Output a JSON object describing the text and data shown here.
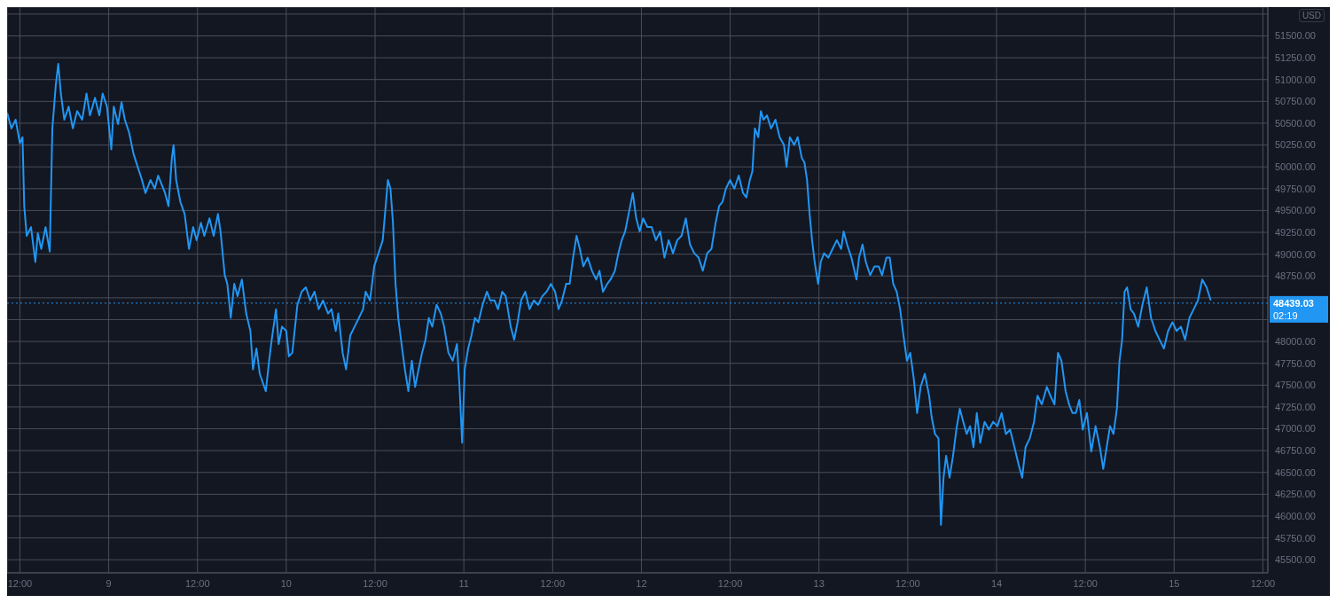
{
  "chart_data": {
    "type": "line",
    "x": [
      "--12-08T10:16",
      "--12-08T10:51",
      "--12-08T11:25",
      "--12-08T12:00",
      "--12-08T12:21",
      "--12-08T12:35",
      "--12-08T12:55",
      "--12-08T13:30",
      "--12-08T14:05",
      "--12-08T14:25",
      "--12-08T14:53",
      "--12-08T15:28",
      "--12-08T16:02",
      "--12-08T16:23",
      "--12-08T16:51",
      "--12-08T17:11",
      "--12-08T17:32",
      "--12-08T18:00",
      "--12-08T18:35",
      "--12-08T19:09",
      "--12-08T19:44",
      "--12-08T20:25",
      "--12-08T21:00",
      "--12-08T21:28",
      "--12-08T22:09",
      "--12-08T22:44",
      "--12-08T23:11",
      "--12-08T23:46",
      "--12-09T00:21",
      "--12-09T00:41",
      "--12-09T01:16",
      "--12-09T01:44",
      "--12-09T02:11",
      "--12-09T02:46",
      "--12-09T03:21",
      "--12-09T03:55",
      "--12-09T04:30",
      "--12-09T04:58",
      "--12-09T05:39",
      "--12-09T06:14",
      "--12-09T06:41",
      "--12-09T07:09",
      "--12-09T07:37",
      "--12-09T08:05",
      "--12-09T08:32",
      "--12-09T08:46",
      "--12-09T09:07",
      "--12-09T09:41",
      "--12-09T10:16",
      "--12-09T10:51",
      "--12-09T11:25",
      "--12-09T11:53",
      "--12-09T12:28",
      "--12-09T12:55",
      "--12-09T13:37",
      "--12-09T14:11",
      "--12-09T14:46",
      "--12-09T15:07",
      "--12-09T15:41",
      "--12-09T16:02",
      "--12-09T16:30",
      "--12-09T16:58",
      "--12-09T17:25",
      "--12-09T18:00",
      "--12-09T18:35",
      "--12-09T19:09",
      "--12-09T19:30",
      "--12-09T19:58",
      "--12-09T20:25",
      "--12-09T21:14",
      "--12-09T21:41",
      "--12-09T22:02",
      "--12-09T22:37",
      "--12-09T22:58",
      "--12-09T23:25",
      "--12-10T00:00",
      "--12-10T00:21",
      "--12-10T00:49",
      "--12-10T01:30",
      "--12-10T02:05",
      "--12-10T02:39",
      "--12-10T03:14",
      "--12-10T03:49",
      "--12-10T04:23",
      "--12-10T04:58",
      "--12-10T05:39",
      "--12-10T06:07",
      "--12-10T06:41",
      "--12-10T07:02",
      "--12-10T07:37",
      "--12-10T08:05",
      "--12-10T08:39",
      "--12-10T09:14",
      "--12-10T09:49",
      "--12-10T10:23",
      "--12-10T10:44",
      "--12-10T11:19",
      "--12-10T11:53",
      "--12-10T12:28",
      "--12-10T13:02",
      "--12-10T13:23",
      "--12-10T13:44",
      "--12-10T14:05",
      "--12-10T14:25",
      "--12-10T14:46",
      "--12-10T15:08",
      "--12-10T15:35",
      "--12-10T16:02",
      "--12-10T16:30",
      "--12-10T16:58",
      "--12-10T17:25",
      "--12-10T17:53",
      "--12-10T18:21",
      "--12-10T18:49",
      "--12-10T19:16",
      "--12-10T19:44",
      "--12-10T20:19",
      "--12-10T20:53",
      "--12-10T21:20",
      "--12-10T21:55",
      "--12-10T22:30",
      "--12-10T23:04",
      "--12-10T23:25",
      "--12-10T23:46",
      "--12-11T00:07",
      "--12-11T00:35",
      "--12-11T01:02",
      "--12-11T01:30",
      "--12-11T01:58",
      "--12-11T02:32",
      "--12-11T03:07",
      "--12-11T03:34",
      "--12-11T04:09",
      "--12-11T04:37",
      "--12-11T05:11",
      "--12-11T05:39",
      "--12-11T06:20",
      "--12-11T06:48",
      "--12-11T07:16",
      "--12-11T07:44",
      "--12-11T08:18",
      "--12-11T08:53",
      "--12-11T09:28",
      "--12-11T10:02",
      "--12-11T10:37",
      "--12-11T11:11",
      "--12-11T11:46",
      "--12-11T12:20",
      "--12-11T12:48",
      "--12-11T13:16",
      "--12-11T13:50",
      "--12-11T14:18",
      "--12-11T14:46",
      "--12-11T15:14",
      "--12-11T15:41",
      "--12-11T16:09",
      "--12-11T16:44",
      "--12-11T17:19",
      "--12-11T17:53",
      "--12-11T18:20",
      "--12-11T18:48",
      "--12-11T19:23",
      "--12-11T19:50",
      "--12-11T20:25",
      "--12-11T20:53",
      "--12-11T21:20",
      "--12-11T21:48",
      "--12-11T22:16",
      "--12-11T22:50",
      "--12-11T23:18",
      "--12-11T23:46",
      "--12-12T00:14",
      "--12-12T00:49",
      "--12-12T01:23",
      "--12-12T01:58",
      "--12-12T02:32",
      "--12-12T03:07",
      "--12-12T03:41",
      "--12-12T04:16",
      "--12-12T04:50",
      "--12-12T05:25",
      "--12-12T06:00",
      "--12-12T06:34",
      "--12-12T07:09",
      "--12-12T07:44",
      "--12-12T08:18",
      "--12-12T08:53",
      "--12-12T09:28",
      "--12-12T10:02",
      "--12-12T10:30",
      "--12-12T10:58",
      "--12-12T11:25",
      "--12-12T11:59",
      "--12-12T12:34",
      "--12-12T13:09",
      "--12-12T13:44",
      "--12-12T14:11",
      "--12-12T14:39",
      "--12-12T15:00",
      "--12-12T15:20",
      "--12-12T15:48",
      "--12-12T16:09",
      "--12-12T16:30",
      "--12-12T16:58",
      "--12-12T17:32",
      "--12-12T18:07",
      "--12-12T18:41",
      "--12-12T19:16",
      "--12-12T19:37",
      "--12-12T20:04",
      "--12-12T20:39",
      "--12-12T21:07",
      "--12-12T21:41",
      "--12-12T22:02",
      "--12-12T22:23",
      "--12-12T22:44",
      "--12-12T23:04",
      "--12-12T23:25",
      "--12-12T23:53",
      "--12-13T00:14",
      "--12-13T00:41",
      "--12-13T01:16",
      "--12-13T01:50",
      "--12-13T02:25",
      "--12-13T03:00",
      "--12-13T03:20",
      "--12-13T03:48",
      "--12-13T04:23",
      "--12-13T05:04",
      "--12-13T05:25",
      "--12-13T05:53",
      "--12-13T06:20",
      "--12-13T06:55",
      "--12-13T07:30",
      "--12-13T08:04",
      "--12-13T08:32",
      "--12-13T09:07",
      "--12-13T09:34",
      "--12-13T10:02",
      "--12-13T10:30",
      "--12-13T10:58",
      "--12-13T11:25",
      "--12-13T11:53",
      "--12-13T12:20",
      "--12-13T12:48",
      "--12-13T13:16",
      "--12-13T13:44",
      "--12-13T14:18",
      "--12-13T14:53",
      "--12-13T15:14",
      "--12-13T15:41",
      "--12-13T16:09",
      "--12-13T16:29",
      "--12-13T16:50",
      "--12-13T17:11",
      "--12-13T17:39",
      "--12-13T18:07",
      "--12-13T18:34",
      "--12-13T19:02",
      "--12-13T19:30",
      "--12-13T19:58",
      "--12-13T20:25",
      "--12-13T20:53",
      "--12-13T21:20",
      "--12-13T21:48",
      "--12-13T22:23",
      "--12-13T22:58",
      "--12-13T23:32",
      "--12-14T00:07",
      "--12-14T00:41",
      "--12-14T01:16",
      "--12-14T01:50",
      "--12-14T02:25",
      "--12-14T02:59",
      "--12-14T03:28",
      "--12-14T03:55",
      "--12-14T04:29",
      "--12-14T05:04",
      "--12-14T05:32",
      "--12-14T06:07",
      "--12-14T06:48",
      "--12-14T07:16",
      "--12-14T07:50",
      "--12-14T08:18",
      "--12-14T08:46",
      "--12-14T09:20",
      "--12-14T09:48",
      "--12-14T10:16",
      "--12-14T10:43",
      "--12-14T11:11",
      "--12-14T11:39",
      "--12-14T12:13",
      "--12-14T12:48",
      "--12-14T13:23",
      "--12-14T13:58",
      "--12-14T14:25",
      "--12-14T14:53",
      "--12-14T15:20",
      "--12-14T15:48",
      "--12-14T16:16",
      "--12-14T16:37",
      "--12-14T16:58",
      "--12-14T17:18",
      "--12-14T17:39",
      "--12-14T18:07",
      "--12-14T18:34",
      "--12-14T19:09",
      "--12-14T19:43",
      "--12-14T20:18",
      "--12-14T20:53",
      "--12-14T21:28",
      "--12-14T22:02",
      "--12-14T22:37",
      "--12-14T23:11",
      "--12-14T23:46",
      "--12-15T00:20",
      "--12-15T00:55",
      "--12-15T01:29",
      "--12-15T02:04",
      "--12-15T02:39",
      "--12-15T03:13",
      "--12-15T03:48",
      "--12-15T04:23",
      "--12-15T04:57"
    ],
    "series": [
      {
        "color": "#2196f3",
        "values": [
          50620,
          50440,
          50540,
          50270,
          50340,
          49550,
          49210,
          49310,
          48910,
          49240,
          49060,
          49310,
          49030,
          50440,
          50940,
          51180,
          50840,
          50540,
          50690,
          50440,
          50640,
          50540,
          50840,
          50590,
          50790,
          50590,
          50840,
          50690,
          50200,
          50690,
          50490,
          50740,
          50540,
          50390,
          50150,
          50000,
          49850,
          49700,
          49850,
          49750,
          49900,
          49800,
          49700,
          49550,
          50100,
          50250,
          49850,
          49600,
          49460,
          49060,
          49310,
          49160,
          49360,
          49210,
          49410,
          49210,
          49460,
          49260,
          48760,
          48660,
          48270,
          48660,
          48520,
          48710,
          48320,
          48120,
          47680,
          47920,
          47630,
          47430,
          47780,
          48020,
          48370,
          47970,
          48170,
          48120,
          47830,
          47870,
          48420,
          48570,
          48620,
          48470,
          48570,
          48370,
          48470,
          48320,
          48370,
          48120,
          48320,
          47870,
          47680,
          48070,
          48170,
          48270,
          48370,
          48570,
          48470,
          48860,
          49010,
          49160,
          49500,
          49850,
          49750,
          49360,
          48660,
          48270,
          47970,
          47680,
          47430,
          47780,
          47480,
          47680,
          47870,
          48020,
          48270,
          48170,
          48420,
          48320,
          48170,
          47870,
          47780,
          47970,
          47480,
          46840,
          47680,
          47920,
          48070,
          48270,
          48220,
          48420,
          48570,
          48470,
          48470,
          48370,
          48570,
          48520,
          48170,
          48020,
          48220,
          48470,
          48570,
          48370,
          48470,
          48420,
          48520,
          48570,
          48660,
          48570,
          48370,
          48470,
          48660,
          48660,
          48960,
          49210,
          49060,
          48860,
          48960,
          48810,
          48710,
          48810,
          48570,
          48660,
          48710,
          48810,
          49010,
          49160,
          49260,
          49460,
          49700,
          49410,
          49260,
          49410,
          49310,
          49310,
          49160,
          49260,
          48960,
          49160,
          49010,
          49160,
          49210,
          49410,
          49110,
          49010,
          48960,
          48810,
          49010,
          49060,
          49360,
          49550,
          49600,
          49750,
          49850,
          49750,
          49900,
          49700,
          49650,
          49850,
          49950,
          50440,
          50340,
          50640,
          50540,
          50590,
          50440,
          50540,
          50340,
          50250,
          50000,
          50340,
          50250,
          50340,
          50100,
          50050,
          49850,
          49460,
          49160,
          48910,
          48660,
          48910,
          49010,
          48960,
          49060,
          49160,
          49060,
          49260,
          49110,
          48960,
          48710,
          48960,
          49110,
          48910,
          48760,
          48860,
          48860,
          48760,
          48960,
          48960,
          48660,
          48570,
          48370,
          48070,
          47780,
          47870,
          47580,
          47180,
          47480,
          47630,
          47380,
          47130,
          46940,
          46890,
          45900,
          46440,
          46690,
          46440,
          46690,
          46990,
          47230,
          47080,
          46940,
          47030,
          46790,
          47180,
          46840,
          47080,
          46990,
          47080,
          47030,
          47180,
          46940,
          46990,
          46790,
          46590,
          46440,
          46790,
          46890,
          47080,
          47380,
          47280,
          47480,
          47380,
          47280,
          47870,
          47780,
          47430,
          47280,
          47180,
          47180,
          47330,
          46990,
          47180,
          46740,
          47030,
          46790,
          46540,
          46790,
          47030,
          46940,
          47230,
          47780,
          48020,
          48570,
          48620,
          48370,
          48320,
          48170,
          48420,
          48620,
          48270,
          48120,
          48020,
          47920,
          48120,
          48220,
          48120,
          48170,
          48020,
          48270,
          48370,
          48470,
          48710,
          48620,
          48470
        ]
      }
    ],
    "xlim": [
      "--12-08T10:16",
      "--12-15T12:40"
    ],
    "ylim": [
      45350,
      51830
    ],
    "xticks": [
      {
        "value": "--12-08T12:00",
        "label": "12:00"
      },
      {
        "value": "--12-09",
        "label": "9"
      },
      {
        "value": "--12-09T12:00",
        "label": "12:00"
      },
      {
        "value": "--12-10",
        "label": "10"
      },
      {
        "value": "--12-10T12:00",
        "label": "12:00"
      },
      {
        "value": "--12-11",
        "label": "11"
      },
      {
        "value": "--12-11T12:00",
        "label": "12:00"
      },
      {
        "value": "--12-12",
        "label": "12"
      },
      {
        "value": "--12-12T12:00",
        "label": "12:00"
      },
      {
        "value": "--12-13",
        "label": "13"
      },
      {
        "value": "--12-13T12:00",
        "label": "12:00"
      },
      {
        "value": "--12-14",
        "label": "14"
      },
      {
        "value": "--12-14T12:00",
        "label": "12:00"
      },
      {
        "value": "--12-15",
        "label": "15"
      },
      {
        "value": "--12-15T12:00",
        "label": "12:00"
      }
    ],
    "yticks": [
      {
        "value": 45500,
        "label": "45500.00"
      },
      {
        "value": 45750,
        "label": "45750.00"
      },
      {
        "value": 46000,
        "label": "46000.00"
      },
      {
        "value": 46250,
        "label": "46250.00"
      },
      {
        "value": 46500,
        "label": "46500.00"
      },
      {
        "value": 46750,
        "label": "46750.00"
      },
      {
        "value": 47000,
        "label": "47000.00"
      },
      {
        "value": 47250,
        "label": "47250.00"
      },
      {
        "value": 47500,
        "label": "47500.00"
      },
      {
        "value": 47750,
        "label": "47750.00"
      },
      {
        "value": 48000,
        "label": "48000.00"
      },
      {
        "value": 48250,
        "label": null
      },
      {
        "value": 48500,
        "label": null
      },
      {
        "value": 48750,
        "label": "48750.00"
      },
      {
        "value": 49000,
        "label": "49000.00"
      },
      {
        "value": 49250,
        "label": "49250.00"
      },
      {
        "value": 49500,
        "label": "49500.00"
      },
      {
        "value": 49750,
        "label": "49750.00"
      },
      {
        "value": 50000,
        "label": "50000.00"
      },
      {
        "value": 50250,
        "label": "50250.00"
      },
      {
        "value": 50500,
        "label": "50500.00"
      },
      {
        "value": 50750,
        "label": "50750.00"
      },
      {
        "value": 51000,
        "label": "51000.00"
      },
      {
        "value": 51250,
        "label": "51250.00"
      },
      {
        "value": 51500,
        "label": "51500.00"
      },
      {
        "value": 51750,
        "label": null
      }
    ],
    "ref_lines": [
      {
        "axis": "y",
        "value": 48439.03,
        "label": "48439.03",
        "color": "#2196f3",
        "line_style": "dotted"
      }
    ],
    "annotations": [
      "USD",
      "02:19"
    ],
    "grid": true,
    "marker": "none",
    "line_style": "solid"
  }
}
